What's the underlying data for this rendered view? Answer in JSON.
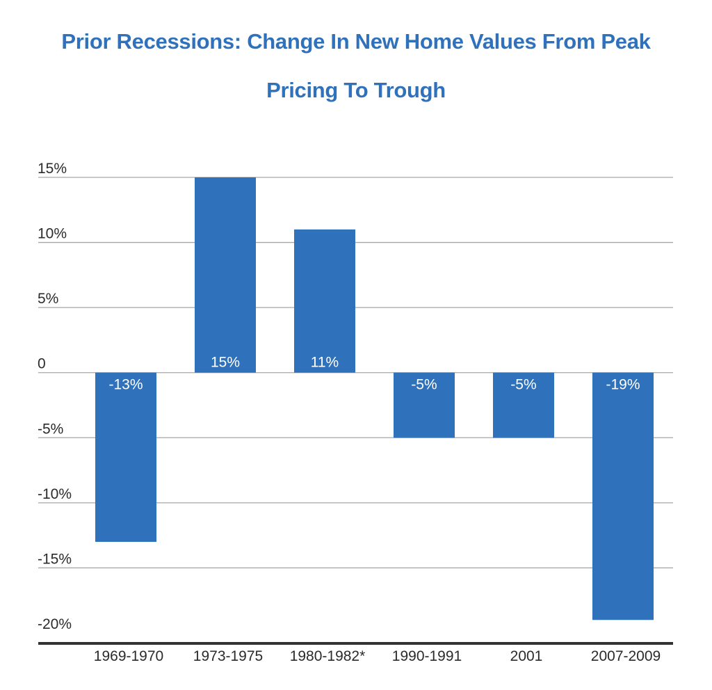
{
  "colors": {
    "title": "#2f72bb",
    "bar": "#2f72bb",
    "grid": "#a6a6a6",
    "baseline": "#333333",
    "label_on_bar": "#ffffff",
    "text": "#2b2b2b"
  },
  "chart_data": {
    "type": "bar",
    "title_lines": [
      "Prior Recessions: Change In New Home Values From Peak",
      "Pricing To Trough"
    ],
    "categories": [
      "1969-1970",
      "1973-1975",
      "1980-1982*",
      "1990-1991",
      "2001",
      "2007-2009"
    ],
    "values": [
      -13,
      15,
      11,
      -5,
      -5,
      -19
    ],
    "data_labels": [
      "-13%",
      "15%",
      "11%",
      "-5%",
      "-5%",
      "-19%"
    ],
    "y_ticks": [
      15,
      10,
      5,
      0,
      -5,
      -10,
      -15,
      -20
    ],
    "y_tick_labels": [
      "15%",
      "10%",
      "5%",
      "0",
      "-5%",
      "-10%",
      "-15%",
      "-20%"
    ],
    "ylim": [
      -20,
      15
    ],
    "grid": true,
    "legend": false,
    "xlabel": "",
    "ylabel": ""
  }
}
